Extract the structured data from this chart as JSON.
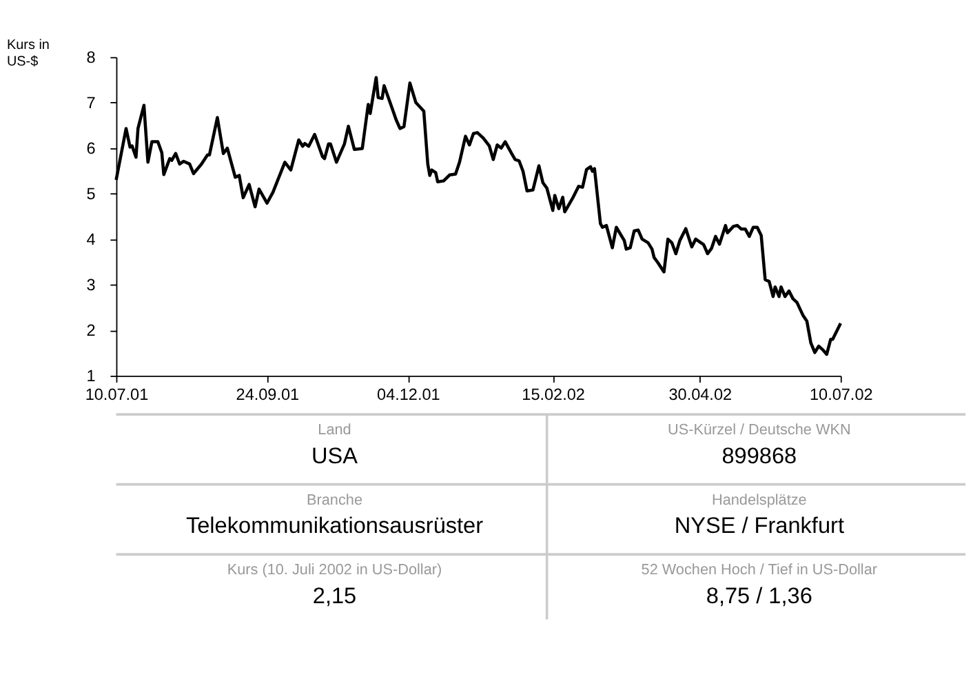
{
  "chart_data": {
    "type": "line",
    "ylabel": "Kurs in US-$",
    "color": "#000000",
    "x": [
      "2001-07-10",
      "2001-07-15",
      "2001-07-17",
      "2001-07-18",
      "2001-07-20",
      "2001-07-21",
      "2001-07-24",
      "2001-07-26",
      "2001-07-28",
      "2001-07-31",
      "2001-08-02",
      "2001-08-03",
      "2001-08-06",
      "2001-08-07",
      "2001-08-09",
      "2001-08-11",
      "2001-08-13",
      "2001-08-16",
      "2001-08-18",
      "2001-08-22",
      "2001-08-25",
      "2001-08-26",
      "2001-08-30",
      "2001-09-02",
      "2001-09-04",
      "2001-09-08",
      "2001-09-10",
      "2001-09-12",
      "2001-09-15",
      "2001-09-18",
      "2001-09-20",
      "2001-09-24",
      "2001-09-27",
      "2001-10-01",
      "2001-10-03",
      "2001-10-06",
      "2001-10-10",
      "2001-10-12",
      "2001-10-13",
      "2001-10-15",
      "2001-10-18",
      "2001-10-22",
      "2001-10-23",
      "2001-10-25",
      "2001-10-26",
      "2001-10-29",
      "2001-11-02",
      "2001-11-04",
      "2001-11-07",
      "2001-11-11",
      "2001-11-14",
      "2001-11-15",
      "2001-11-18",
      "2001-11-19",
      "2001-11-21",
      "2001-11-22",
      "2001-11-26",
      "2001-11-28",
      "2001-11-30",
      "2001-12-02",
      "2001-12-05",
      "2001-12-08",
      "2001-12-12",
      "2001-12-14",
      "2001-12-15",
      "2001-12-16",
      "2001-12-18",
      "2001-12-19",
      "2001-12-22",
      "2001-12-25",
      "2001-12-28",
      "2001-12-30",
      "2002-01-02",
      "2002-01-04",
      "2002-01-06",
      "2002-01-08",
      "2002-01-11",
      "2002-01-14",
      "2002-01-16",
      "2002-01-18",
      "2002-01-20",
      "2002-01-22",
      "2002-01-25",
      "2002-01-27",
      "2002-01-29",
      "2002-01-31",
      "2002-02-02",
      "2002-02-05",
      "2002-02-08",
      "2002-02-10",
      "2002-02-12",
      "2002-02-15",
      "2002-02-16",
      "2002-02-18",
      "2002-02-20",
      "2002-02-21",
      "2002-02-25",
      "2002-02-28",
      "2002-03-02",
      "2002-03-04",
      "2002-03-06",
      "2002-03-07",
      "2002-03-08",
      "2002-03-11",
      "2002-03-12",
      "2002-03-14",
      "2002-03-17",
      "2002-03-19",
      "2002-03-23",
      "2002-03-24",
      "2002-03-26",
      "2002-03-28",
      "2002-03-30",
      "2002-04-01",
      "2002-04-04",
      "2002-04-06",
      "2002-04-07",
      "2002-04-09",
      "2002-04-12",
      "2002-04-14",
      "2002-04-16",
      "2002-04-18",
      "2002-04-20",
      "2002-04-23",
      "2002-04-26",
      "2002-04-28",
      "2002-05-02",
      "2002-05-04",
      "2002-05-06",
      "2002-05-08",
      "2002-05-10",
      "2002-05-13",
      "2002-05-14",
      "2002-05-17",
      "2002-05-19",
      "2002-05-21",
      "2002-05-23",
      "2002-05-25",
      "2002-05-27",
      "2002-05-29",
      "2002-05-31",
      "2002-06-02",
      "2002-06-04",
      "2002-06-06",
      "2002-06-07",
      "2002-06-09",
      "2002-06-10",
      "2002-06-12",
      "2002-06-14",
      "2002-06-16",
      "2002-06-18",
      "2002-06-21",
      "2002-06-23",
      "2002-06-25",
      "2002-06-27",
      "2002-06-29",
      "2002-07-01",
      "2002-07-03",
      "2002-07-05",
      "2002-07-06",
      "2002-07-10"
    ],
    "values": [
      5.3,
      6.43,
      6.02,
      6.05,
      5.8,
      6.43,
      6.94,
      5.69,
      6.14,
      6.14,
      5.9,
      5.42,
      5.77,
      5.73,
      5.88,
      5.65,
      5.71,
      5.65,
      5.44,
      5.65,
      5.85,
      5.85,
      6.67,
      5.88,
      6.0,
      5.36,
      5.4,
      4.91,
      5.2,
      4.71,
      5.1,
      4.79,
      5.03,
      5.47,
      5.69,
      5.52,
      6.18,
      6.04,
      6.1,
      6.04,
      6.3,
      5.81,
      5.77,
      6.09,
      6.09,
      5.69,
      6.09,
      6.48,
      5.97,
      5.99,
      6.96,
      6.76,
      7.55,
      7.11,
      7.09,
      7.37,
      6.88,
      6.63,
      6.43,
      6.47,
      7.43,
      7.0,
      6.81,
      5.65,
      5.4,
      5.52,
      5.46,
      5.26,
      5.28,
      5.41,
      5.43,
      5.69,
      6.26,
      6.07,
      6.32,
      6.34,
      6.22,
      6.05,
      5.75,
      6.07,
      6.0,
      6.14,
      5.9,
      5.75,
      5.72,
      5.49,
      5.06,
      5.08,
      5.61,
      5.24,
      5.12,
      4.63,
      4.96,
      4.67,
      4.92,
      4.6,
      4.9,
      5.16,
      5.14,
      5.53,
      5.59,
      5.49,
      5.55,
      4.34,
      4.26,
      4.3,
      3.81,
      4.26,
      3.97,
      3.78,
      3.81,
      4.18,
      4.2,
      4.0,
      3.92,
      3.78,
      3.6,
      3.48,
      3.28,
      4.0,
      3.92,
      3.68,
      3.97,
      4.23,
      3.83,
      4.0,
      3.88,
      3.68,
      3.8,
      4.06,
      3.89,
      4.3,
      4.14,
      4.28,
      4.3,
      4.22,
      4.22,
      4.06,
      4.26,
      4.26,
      4.08,
      3.11,
      3.07,
      2.74,
      2.95,
      2.74,
      2.95,
      2.74,
      2.86,
      2.69,
      2.61,
      2.33,
      2.2,
      1.72,
      1.51,
      1.65,
      1.57,
      1.47,
      1.8,
      1.8,
      2.15
    ],
    "xlim": [
      "2001-07-10",
      "2002-07-10"
    ],
    "xticks": [
      {
        "value": "2001-07-10",
        "label": "10.07.01"
      },
      {
        "value": "2001-09-24",
        "label": "24.09.01"
      },
      {
        "value": "2001-12-04",
        "label": "04.12.01"
      },
      {
        "value": "2002-02-15",
        "label": "15.02.02"
      },
      {
        "value": "2002-04-30",
        "label": "30.04.02"
      },
      {
        "value": "2002-07-10",
        "label": "10.07.02"
      }
    ],
    "ylim": [
      1,
      8
    ],
    "yticks": [
      1,
      2,
      3,
      4,
      5,
      6,
      7,
      8
    ],
    "line_style": "solid",
    "annotations": [
      "Land",
      "USA",
      "US-Kürzel / Deutsche WKN",
      "899868",
      "Branche",
      "Telekommunikationsausrüster",
      "Handelsplätze",
      "NYSE / Frankfurt",
      "Kurs (10. Juli 2002 in US-Dollar)",
      "2,15",
      "52 Wochen Hoch / Tief in US-Dollar",
      "8,75 / 1,36"
    ]
  }
}
